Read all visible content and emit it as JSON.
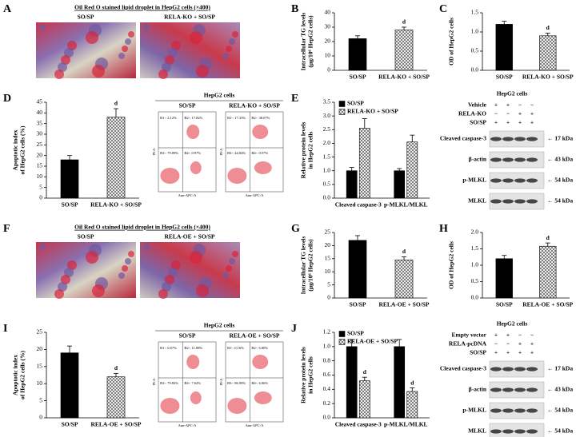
{
  "micrographs": [
    {
      "label": "A",
      "title": "Oil Red O stained lipid droplet in HepG2 cells (×400)",
      "captions": [
        "SO/SP",
        "RELA-KO + SO/SP"
      ]
    },
    {
      "label": "F",
      "title": "Oil Red O stained lipid droplet in HepG2 cells (×400)",
      "captions": [
        "SO/SP",
        "RELA-OE + SO/SP"
      ]
    }
  ],
  "chart_data": [
    {
      "type": "bar",
      "label": "B",
      "ylabel": [
        "Intracellular TG levels",
        "(μg/10⁶ HepG2 cells)"
      ],
      "categories": [
        "SO/SP",
        "RELA-KO + SO/SP"
      ],
      "values": [
        22,
        28
      ],
      "errors": [
        2,
        2
      ],
      "significance": [
        null,
        "d"
      ],
      "bar_styles": [
        "solid",
        "crosshatch"
      ],
      "color": "#000000",
      "ylim": [
        0,
        40
      ],
      "yticks": [
        0,
        10,
        20,
        30,
        40
      ]
    },
    {
      "type": "bar",
      "label": "C",
      "ylabel": [
        "OD of HepG2 cells"
      ],
      "categories": [
        "SO/SP",
        "RELA-KO + SO/SP"
      ],
      "values": [
        1.2,
        0.9
      ],
      "errors": [
        0.08,
        0.07
      ],
      "significance": [
        null,
        "d"
      ],
      "bar_styles": [
        "solid",
        "crosshatch"
      ],
      "color": "#000000",
      "ylim": [
        0,
        1.5
      ],
      "yticks": [
        {
          "value": 0,
          "label": "0.0"
        },
        0.5,
        {
          "value": 1,
          "label": "1.0"
        },
        1.5
      ]
    },
    {
      "type": "bar",
      "label": "D",
      "ylabel": [
        "Apoptotic index",
        "of HepG2 cells (%)"
      ],
      "categories": [
        "SO/SP",
        "RELA-KO + SO/SP"
      ],
      "values": [
        18,
        38
      ],
      "errors": [
        2,
        4
      ],
      "significance": [
        null,
        "d"
      ],
      "bar_styles": [
        "solid",
        "crosshatch"
      ],
      "color": "#000000",
      "ylim": [
        0,
        45
      ],
      "yticks": [
        0,
        5,
        10,
        15,
        20,
        25,
        30,
        35,
        40,
        45
      ]
    },
    {
      "type": "grouped_bar",
      "label": "E",
      "ylabel": [
        "Relative protein levels",
        "in HepG2 cells"
      ],
      "categories": [
        "Cleaved caspase-3",
        "p-MLKL/MLKL"
      ],
      "series": [
        {
          "name": "SO/SP",
          "color": "#000000",
          "style": "solid",
          "values": [
            1.0,
            1.0
          ],
          "errors": [
            0.12,
            0.08
          ],
          "significance": [
            null,
            null
          ]
        },
        {
          "name": "RELA-KO + SO/SP",
          "color": "#000000",
          "style": "crosshatch",
          "values": [
            2.55,
            2.05
          ],
          "errors": [
            0.35,
            0.25
          ],
          "significance": [
            null,
            null
          ]
        }
      ],
      "ylim": [
        0,
        3.5
      ],
      "yticks": [
        {
          "value": 0,
          "label": "0.0"
        },
        0.5,
        {
          "value": 1,
          "label": "1.0"
        },
        1.5,
        {
          "value": 2,
          "label": "2.0"
        },
        2.5,
        {
          "value": 3,
          "label": "3.0"
        },
        3.5
      ]
    },
    {
      "type": "bar",
      "label": "G",
      "ylabel": [
        "Intracellular TG levels",
        "(μg/10⁶ HepG2 cells)"
      ],
      "categories": [
        "SO/SP",
        "RELA-OE + SO/SP"
      ],
      "values": [
        22,
        14.5
      ],
      "errors": [
        1.8,
        1.2
      ],
      "significance": [
        null,
        "d"
      ],
      "bar_styles": [
        "solid",
        "crosshatch"
      ],
      "color": "#000000",
      "ylim": [
        0,
        25
      ],
      "yticks": [
        0,
        5,
        10,
        15,
        20,
        25
      ]
    },
    {
      "type": "bar",
      "label": "H",
      "ylabel": [
        "OD of HepG2 cells"
      ],
      "categories": [
        "SO/SP",
        "RELA-OE + SO/SP"
      ],
      "values": [
        1.2,
        1.58
      ],
      "errors": [
        0.1,
        0.1
      ],
      "significance": [
        null,
        "d"
      ],
      "bar_styles": [
        "solid",
        "crosshatch"
      ],
      "color": "#000000",
      "ylim": [
        0,
        2
      ],
      "yticks": [
        {
          "value": 0,
          "label": "0.0"
        },
        0.5,
        {
          "value": 1,
          "label": "1.0"
        },
        1.5,
        {
          "value": 2,
          "label": "2.0"
        }
      ]
    },
    {
      "type": "bar",
      "label": "I",
      "ylabel": [
        "Apoptotic index",
        "of HepG2 cells (%)"
      ],
      "categories": [
        "SO/SP",
        "RELA-OE + SO/SP"
      ],
      "values": [
        19,
        12
      ],
      "errors": [
        2,
        1
      ],
      "significance": [
        null,
        "d"
      ],
      "bar_styles": [
        "solid",
        "crosshatch"
      ],
      "color": "#000000",
      "ylim": [
        0,
        25
      ],
      "yticks": [
        0,
        5,
        10,
        15,
        20,
        25
      ]
    },
    {
      "type": "grouped_bar",
      "label": "J",
      "ylabel": [
        "Relative protein levels",
        "in HepG2 cells"
      ],
      "categories": [
        "Cleaved caspase-3",
        "p-MLKL/MLKL"
      ],
      "series": [
        {
          "name": "SO/SP",
          "color": "#000000",
          "style": "solid",
          "values": [
            1.0,
            1.0
          ],
          "errors": [
            0.1,
            0.1
          ],
          "significance": [
            null,
            null
          ]
        },
        {
          "name": "RELA-OE + SO/SP",
          "color": "#000000",
          "style": "crosshatch",
          "values": [
            0.52,
            0.37
          ],
          "errors": [
            0.05,
            0.05
          ],
          "significance": [
            "d",
            "d"
          ]
        }
      ],
      "ylim": [
        0,
        1.2
      ],
      "yticks": [
        {
          "value": 0,
          "label": "0.0"
        },
        0.2,
        0.4,
        0.6,
        0.8,
        {
          "value": 1,
          "label": "1.0"
        },
        1.2
      ]
    }
  ],
  "flow_panels": [
    {
      "title": "HepG2 cells",
      "y_label": "PI-A",
      "x_label": "Ann-APC-A",
      "plots": [
        {
          "caption": "SO/SP",
          "quadrants": [
            "B1-: 2.12%",
            "B2-: 17.82%",
            "B3-: 79.09%",
            "B4-: 0.97%"
          ]
        },
        {
          "caption": "RELA-KO + SO/SP",
          "quadrants": [
            "B1-: 17.33%",
            "B2-: 38.07%",
            "B3-: 44.04%",
            "B4-: 0.57%"
          ]
        }
      ]
    },
    {
      "title": "HepG2 cells",
      "y_label": "PI-A",
      "x_label": "Ann-APC-A",
      "plots": [
        {
          "caption": "SO/SP",
          "quadrants": [
            "B1-: 0.67%",
            "B2-: 11.88%",
            "B3-: 79.82%",
            "B4-: 7.62%"
          ]
        },
        {
          "caption": "RELA-OE + SO/SP",
          "quadrants": [
            "B1-: 0.16%",
            "B2-: 6.80%",
            "B3-: 86.99%",
            "B4-: 6.06%"
          ]
        }
      ]
    }
  ],
  "blots": [
    {
      "title": "HepG2 cells",
      "conditions": [
        {
          "name": "Vehicle",
          "signs": [
            "+",
            "+",
            "−",
            "−"
          ]
        },
        {
          "name": "RELA-KO",
          "signs": [
            "−",
            "−",
            "+",
            "+"
          ]
        },
        {
          "name": "SO/SP",
          "signs": [
            "+",
            "+",
            "+",
            "+"
          ]
        }
      ],
      "bands": [
        {
          "name": "Cleaved caspase-3",
          "size": "← 17 kDa"
        },
        {
          "name": "β-actin",
          "size": "← 43 kDa"
        },
        {
          "name": "p-MLKL",
          "size": "← 54 kDa"
        },
        {
          "name": "MLKL",
          "size": "← 54 kDa"
        }
      ]
    },
    {
      "title": "HepG2 cells",
      "conditions": [
        {
          "name": "Empty vector",
          "signs": [
            "+",
            "+",
            "−",
            "−"
          ]
        },
        {
          "name": "RELA-pcDNA",
          "signs": [
            "−",
            "−",
            "+",
            "+"
          ]
        },
        {
          "name": "SO/SP",
          "signs": [
            "+",
            "+",
            "+",
            "+"
          ]
        }
      ],
      "bands": [
        {
          "name": "Cleaved caspase-3",
          "size": "← 17 kDa"
        },
        {
          "name": "β-actin",
          "size": "← 43 kDa"
        },
        {
          "name": "p-MLKL",
          "size": "← 54 kDa"
        },
        {
          "name": "MLKL",
          "size": "← 54 kDa"
        }
      ]
    }
  ]
}
